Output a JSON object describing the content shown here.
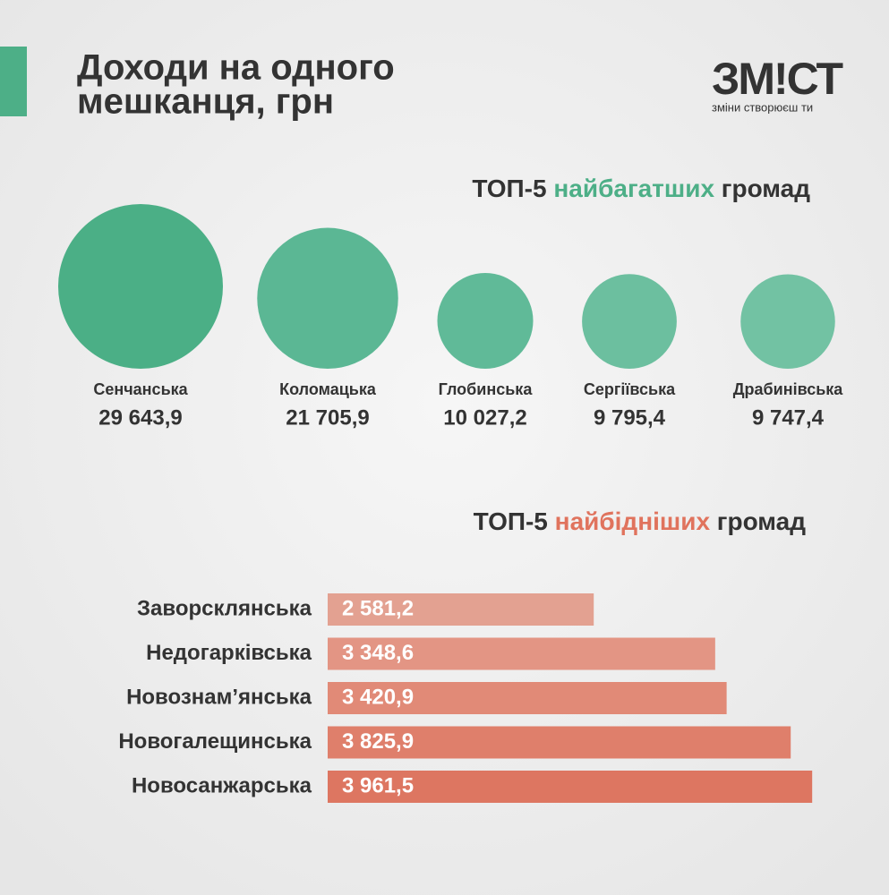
{
  "header": {
    "title_lines": [
      "Доходи на одного",
      "мешканця, грн"
    ],
    "logo": "ЗМ!СТ",
    "tagline": "зміни створюєш ти"
  },
  "chart_data": [
    {
      "type": "bubble",
      "title_parts": [
        "ТОП-5",
        "найбагатших",
        "громад"
      ],
      "highlight_color": "#4daf87",
      "categories": [
        "Сенчанська",
        "Коломацька",
        "Глобинська",
        "Сергіївська",
        "Драбинівська"
      ],
      "values": [
        29643.9,
        21705.9,
        10027.2,
        9795.4,
        9747.4
      ],
      "value_labels": [
        "29 643,9",
        "21 705,9",
        "10 027,2",
        "9 795,4",
        "9 747,4"
      ],
      "colors": [
        "#4baf86",
        "#5bb794",
        "#60ba98",
        "#6cbf9f",
        "#72c2a3"
      ]
    },
    {
      "type": "bar",
      "title_parts": [
        "ТОП-5",
        "найбідніших",
        "громад"
      ],
      "highlight_color": "#e0735d",
      "categories": [
        "Заворсклянська",
        "Недогарківська",
        "Новознам’янська",
        "Новогалещинська",
        "Новосанжарська"
      ],
      "values": [
        2581.2,
        3348.6,
        3420.9,
        3825.9,
        3961.5
      ],
      "value_labels": [
        "2 581,2",
        "3 348,6",
        "3 420,9",
        "3 825,9",
        "3 961,5"
      ],
      "colors": [
        "#e3a191",
        "#e39584",
        "#e18a77",
        "#df7f6b",
        "#dd7661"
      ],
      "xlim": [
        900,
        4000
      ]
    }
  ]
}
